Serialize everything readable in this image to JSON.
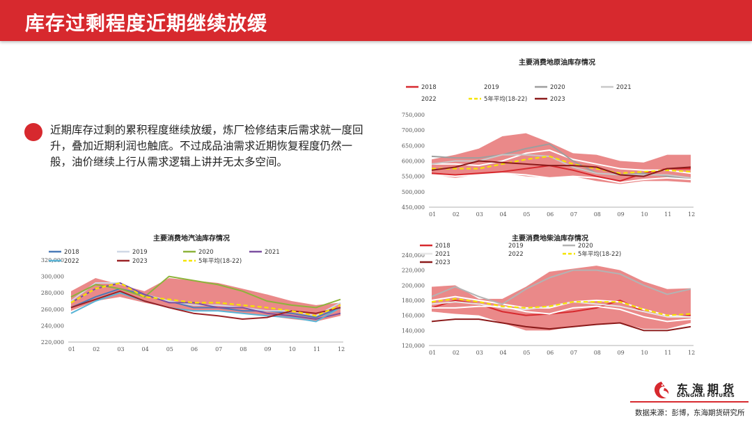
{
  "header": {
    "title": "库存过剩程度近期继续放缓"
  },
  "bullet": {
    "text": "近期库存过剩的累积程度继续放缓，炼厂检修结束后需求就一度回升，叠加近期利润也触底。不过成品油需求近期恢复程度仍然一般，油价继续上行从需求逻辑上讲并无太多空间。"
  },
  "footer": {
    "source": "数据来源：彭博，东海期货研究所",
    "logo_cn": "东海期货",
    "logo_en": "DONGHAI FUTURES"
  },
  "colors": {
    "brand_red": "#d7292e",
    "band": "#e87c7c"
  },
  "chart_data": [
    {
      "type": "line",
      "title": "主要消费地原油库存情况",
      "categories": [
        "01",
        "02",
        "03",
        "04",
        "05",
        "06",
        "07",
        "08",
        "09",
        "10",
        "11",
        "12"
      ],
      "ylim": [
        450000,
        750000
      ],
      "yticks": [
        450000,
        500000,
        550000,
        600000,
        650000,
        700000,
        750000
      ],
      "ytick_labels": [
        "450,000",
        "500,000",
        "550,000",
        "600,000",
        "650,000",
        "700,000",
        "750,000"
      ],
      "band": {
        "upper": [
          605,
          620,
          640,
          680,
          690,
          660,
          625,
          620,
          600,
          595,
          620,
          620
        ],
        "lower": [
          555,
          545,
          555,
          560,
          550,
          545,
          550,
          535,
          525,
          535,
          535,
          530
        ]
      },
      "series": [
        {
          "name": "2018",
          "color": "#d7292e",
          "values": [
            560,
            555,
            560,
            565,
            575,
            585,
            570,
            550,
            535,
            560,
            575,
            575
          ]
        },
        {
          "name": "2019",
          "color": "#ffffff",
          "values": [
            590,
            590,
            585,
            600,
            625,
            635,
            605,
            590,
            575,
            570,
            570,
            560
          ]
        },
        {
          "name": "2020",
          "color": "#9e9e9e",
          "values": [
            615,
            610,
            610,
            620,
            640,
            655,
            600,
            560,
            555,
            560,
            550,
            540
          ]
        },
        {
          "name": "2021",
          "color": "#c8c8c8",
          "values": [
            590,
            600,
            600,
            620,
            620,
            615,
            580,
            560,
            555,
            555,
            555,
            545
          ]
        },
        {
          "name": "2022",
          "color": "#ffffff",
          "values": [
            555,
            550,
            555,
            560,
            555,
            545,
            550,
            545,
            530,
            540,
            545,
            540
          ]
        },
        {
          "name": "5年平均(18-22)",
          "color": "#f5e400",
          "dashed": true,
          "values": [
            575,
            575,
            575,
            590,
            605,
            615,
            590,
            575,
            560,
            565,
            570,
            565
          ]
        },
        {
          "name": "2023",
          "color": "#8b1a1a",
          "values": [
            570,
            580,
            600,
            595,
            590,
            585,
            585,
            580,
            555,
            550,
            575,
            580
          ]
        }
      ]
    },
    {
      "type": "line",
      "title": "主要消费地汽油库存情况",
      "categories": [
        "01",
        "02",
        "03",
        "04",
        "05",
        "06",
        "07",
        "08",
        "09",
        "10",
        "11",
        "12"
      ],
      "ylim": [
        220000,
        320000
      ],
      "yticks": [
        220000,
        240000,
        260000,
        280000,
        300000,
        320000
      ],
      "ytick_labels": [
        "220,000",
        "240,000",
        "260,000",
        "280,000",
        "300,000",
        "320,000"
      ],
      "band": {
        "upper": [
          282,
          298,
          290,
          282,
          298,
          295,
          292,
          285,
          278,
          270,
          265,
          268
        ],
        "lower": [
          258,
          270,
          275,
          268,
          262,
          258,
          258,
          255,
          252,
          248,
          245,
          252
        ]
      },
      "series": [
        {
          "name": "2018",
          "color": "#4a7ab8",
          "values": [
            262,
            275,
            285,
            278,
            270,
            262,
            262,
            258,
            258,
            255,
            250,
            262
          ]
        },
        {
          "name": "2019",
          "color": "#cfd8e6",
          "values": [
            270,
            292,
            292,
            278,
            270,
            265,
            265,
            262,
            258,
            258,
            252,
            268
          ]
        },
        {
          "name": "2020",
          "color": "#8db33a",
          "values": [
            275,
            290,
            285,
            275,
            300,
            295,
            290,
            282,
            270,
            265,
            262,
            272
          ]
        },
        {
          "name": "2021",
          "color": "#7b4fa0",
          "values": [
            268,
            285,
            292,
            278,
            268,
            268,
            262,
            262,
            255,
            252,
            248,
            255
          ]
        },
        {
          "name": "2022",
          "color": "#5ab4d6",
          "values": [
            255,
            270,
            280,
            270,
            262,
            258,
            258,
            255,
            252,
            250,
            245,
            262
          ]
        },
        {
          "name": "2023",
          "color": "#9b2226",
          "values": [
            262,
            272,
            282,
            270,
            262,
            255,
            252,
            248,
            250,
            258,
            255,
            262
          ]
        },
        {
          "name": "5年平均(18-22)",
          "color": "#f5e400",
          "dashed": true,
          "values": [
            268,
            285,
            292,
            275,
            272,
            268,
            268,
            265,
            262,
            258,
            252,
            265
          ]
        }
      ]
    },
    {
      "type": "line",
      "title": "主要消费地柴油库存情况",
      "categories": [
        "01",
        "02",
        "03",
        "04",
        "05",
        "06",
        "07",
        "08",
        "09",
        "10",
        "11",
        "12"
      ],
      "ylim": [
        120000,
        240000
      ],
      "yticks": [
        120000,
        140000,
        160000,
        180000,
        200000,
        220000,
        240000
      ],
      "ytick_labels": [
        "120,000",
        "140,000",
        "160,000",
        "180,000",
        "200,000",
        "220,000",
        "240,000"
      ],
      "band": {
        "upper": [
          198,
          200,
          182,
          182,
          198,
          218,
          222,
          226,
          220,
          205,
          195,
          196
        ],
        "lower": [
          165,
          162,
          160,
          150,
          140,
          140,
          145,
          148,
          150,
          142,
          142,
          150
        ]
      },
      "series": [
        {
          "name": "2018",
          "color": "#d7292e",
          "values": [
            170,
            180,
            175,
            165,
            160,
            162,
            165,
            170,
            180,
            165,
            158,
            160
          ]
        },
        {
          "name": "2019",
          "color": "#ffffff",
          "values": [
            180,
            185,
            180,
            175,
            170,
            170,
            178,
            180,
            178,
            168,
            160,
            158
          ]
        },
        {
          "name": "2020",
          "color": "#b3b3b3",
          "values": [
            185,
            198,
            185,
            175,
            195,
            210,
            220,
            220,
            215,
            200,
            188,
            195
          ]
        },
        {
          "name": "2021",
          "color": "#e6e6e6",
          "values": [
            175,
            178,
            175,
            170,
            168,
            172,
            178,
            175,
            172,
            165,
            158,
            158
          ]
        },
        {
          "name": "2022",
          "color": "#ffffff",
          "values": [
            170,
            170,
            172,
            172,
            165,
            162,
            170,
            172,
            168,
            158,
            152,
            155
          ]
        },
        {
          "name": "5年平均(18-22)",
          "color": "#f5e400",
          "dashed": true,
          "values": [
            178,
            182,
            178,
            172,
            170,
            172,
            178,
            178,
            178,
            168,
            160,
            162
          ]
        },
        {
          "name": "2023",
          "color": "#8b1a1a",
          "values": [
            152,
            155,
            155,
            150,
            145,
            142,
            145,
            148,
            150,
            140,
            140,
            145
          ]
        }
      ]
    }
  ]
}
